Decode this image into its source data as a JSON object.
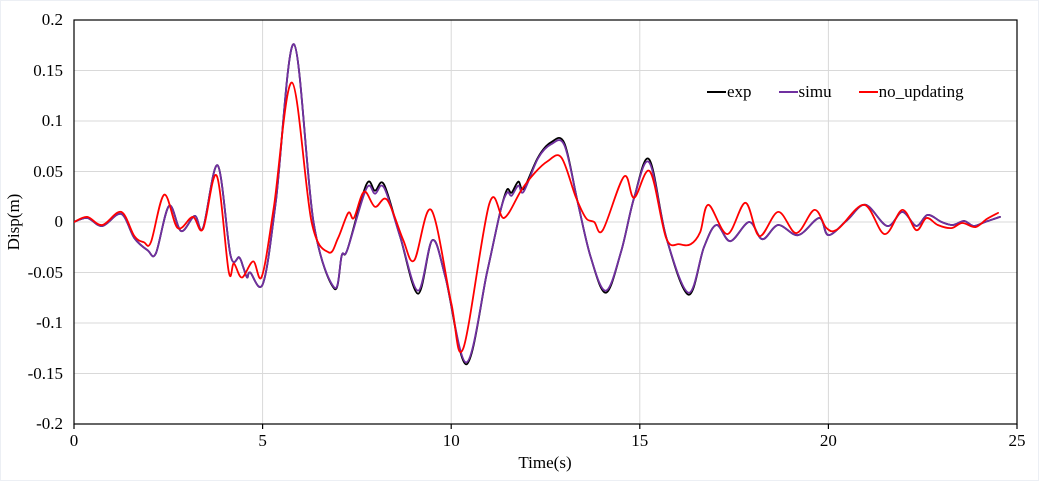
{
  "chart_data": {
    "type": "line",
    "title": "",
    "xlabel": "Time(s)",
    "ylabel": "Disp(m)",
    "xlim": [
      0,
      25
    ],
    "ylim": [
      -0.2,
      0.2
    ],
    "x_ticks": [
      0,
      5,
      10,
      15,
      20,
      25
    ],
    "x_tick_labels": [
      "0",
      "5",
      "10",
      "15",
      "20",
      "25"
    ],
    "y_ticks": [
      0.2,
      0.15,
      0.1,
      0.05,
      0,
      -0.05,
      -0.1,
      -0.15,
      -0.2
    ],
    "y_tick_labels": [
      "0.2",
      "0.15",
      "0.1",
      "0.05",
      "0",
      "-0.05",
      "-0.1",
      "-0.15",
      "-0.2"
    ],
    "grid": true,
    "grid_color": "#d9d9d9",
    "axis_color": "#000000",
    "legend_position": "inside-top-right",
    "series": [
      {
        "name": "exp",
        "color": "#000000",
        "points": [
          [
            0,
            0
          ],
          [
            0.35,
            0.004
          ],
          [
            0.75,
            -0.004
          ],
          [
            1.25,
            0.008
          ],
          [
            1.6,
            -0.016
          ],
          [
            1.95,
            -0.028
          ],
          [
            2.17,
            -0.031
          ],
          [
            2.52,
            0.016
          ],
          [
            2.84,
            -0.009
          ],
          [
            3.2,
            0.006
          ],
          [
            3.42,
            -0.006
          ],
          [
            3.81,
            0.056
          ],
          [
            4.15,
            -0.033
          ],
          [
            4.38,
            -0.035
          ],
          [
            4.48,
            -0.044
          ],
          [
            4.59,
            -0.055
          ],
          [
            4.67,
            -0.05
          ],
          [
            5.01,
            -0.061
          ],
          [
            5.35,
            0.02
          ],
          [
            5.83,
            0.176
          ],
          [
            6.35,
            0
          ],
          [
            6.9,
            -0.066
          ],
          [
            7.1,
            -0.033
          ],
          [
            7.25,
            -0.027
          ],
          [
            7.75,
            0.037
          ],
          [
            7.98,
            0.031
          ],
          [
            8.22,
            0.037
          ],
          [
            8.65,
            -0.015
          ],
          [
            9.12,
            -0.071
          ],
          [
            9.5,
            -0.018
          ],
          [
            9.85,
            -0.055
          ],
          [
            10.4,
            -0.141
          ],
          [
            10.95,
            -0.05
          ],
          [
            11.3,
            0.01
          ],
          [
            11.48,
            0.032
          ],
          [
            11.6,
            0.029
          ],
          [
            11.78,
            0.04
          ],
          [
            11.92,
            0.033
          ],
          [
            12.3,
            0.064
          ],
          [
            12.65,
            0.079
          ],
          [
            13,
            0.078
          ],
          [
            13.35,
            0.02
          ],
          [
            13.7,
            -0.035
          ],
          [
            14.1,
            -0.07
          ],
          [
            14.5,
            -0.03
          ],
          [
            14.85,
            0.024
          ],
          [
            15.25,
            0.062
          ],
          [
            15.7,
            -0.015
          ],
          [
            16.29,
            -0.072
          ],
          [
            16.7,
            -0.025
          ],
          [
            17.03,
            -0.003
          ],
          [
            17.4,
            -0.019
          ],
          [
            17.9,
            0
          ],
          [
            18.25,
            -0.017
          ],
          [
            18.67,
            -0.003
          ],
          [
            19.2,
            -0.013
          ],
          [
            19.76,
            0.004
          ],
          [
            20,
            -0.013
          ],
          [
            20.5,
            0.002
          ],
          [
            20.98,
            0.017
          ],
          [
            21.56,
            -0.004
          ],
          [
            21.96,
            0.01
          ],
          [
            22.33,
            -0.004
          ],
          [
            22.63,
            0.007
          ],
          [
            23,
            0
          ],
          [
            23.3,
            -0.003
          ],
          [
            23.6,
            0.001
          ],
          [
            23.85,
            -0.004
          ],
          [
            24.15,
            0
          ],
          [
            24.55,
            0.005
          ]
        ]
      },
      {
        "name": "simu",
        "color": "#7030A0",
        "points": [
          [
            0,
            0
          ],
          [
            0.35,
            0.004
          ],
          [
            0.75,
            -0.004
          ],
          [
            1.25,
            0.008
          ],
          [
            1.6,
            -0.016
          ],
          [
            1.95,
            -0.028
          ],
          [
            2.17,
            -0.031
          ],
          [
            2.52,
            0.016
          ],
          [
            2.84,
            -0.009
          ],
          [
            3.2,
            0.006
          ],
          [
            3.42,
            -0.006
          ],
          [
            3.81,
            0.056
          ],
          [
            4.15,
            -0.033
          ],
          [
            4.38,
            -0.035
          ],
          [
            4.48,
            -0.044
          ],
          [
            4.59,
            -0.055
          ],
          [
            4.67,
            -0.05
          ],
          [
            5.01,
            -0.061
          ],
          [
            5.35,
            0.02
          ],
          [
            5.83,
            0.176
          ],
          [
            6.35,
            0
          ],
          [
            6.9,
            -0.065
          ],
          [
            7.1,
            -0.033
          ],
          [
            7.25,
            -0.027
          ],
          [
            7.75,
            0.033
          ],
          [
            7.98,
            0.028
          ],
          [
            8.22,
            0.034
          ],
          [
            8.65,
            -0.015
          ],
          [
            9.12,
            -0.068
          ],
          [
            9.5,
            -0.018
          ],
          [
            9.85,
            -0.055
          ],
          [
            10.4,
            -0.139
          ],
          [
            10.95,
            -0.05
          ],
          [
            11.3,
            0.01
          ],
          [
            11.48,
            0.029
          ],
          [
            11.6,
            0.026
          ],
          [
            11.78,
            0.036
          ],
          [
            11.92,
            0.03
          ],
          [
            12.3,
            0.063
          ],
          [
            12.65,
            0.077
          ],
          [
            13,
            0.076
          ],
          [
            13.35,
            0.02
          ],
          [
            13.7,
            -0.035
          ],
          [
            14.1,
            -0.068
          ],
          [
            14.5,
            -0.03
          ],
          [
            14.85,
            0.024
          ],
          [
            15.25,
            0.059
          ],
          [
            15.7,
            -0.015
          ],
          [
            16.29,
            -0.07
          ],
          [
            16.7,
            -0.025
          ],
          [
            17.03,
            -0.003
          ],
          [
            17.4,
            -0.019
          ],
          [
            17.9,
            0
          ],
          [
            18.25,
            -0.017
          ],
          [
            18.67,
            -0.003
          ],
          [
            19.2,
            -0.013
          ],
          [
            19.76,
            0.004
          ],
          [
            20,
            -0.013
          ],
          [
            20.5,
            0.002
          ],
          [
            20.98,
            0.017
          ],
          [
            21.56,
            -0.004
          ],
          [
            21.96,
            0.01
          ],
          [
            22.33,
            -0.004
          ],
          [
            22.63,
            0.007
          ],
          [
            23,
            0
          ],
          [
            23.3,
            -0.003
          ],
          [
            23.6,
            0.001
          ],
          [
            23.85,
            -0.004
          ],
          [
            24.15,
            0
          ],
          [
            24.55,
            0.005
          ]
        ]
      },
      {
        "name": "no_updating",
        "color": "#FF0000",
        "points": [
          [
            0,
            0
          ],
          [
            0.35,
            0.005
          ],
          [
            0.75,
            -0.003
          ],
          [
            1.25,
            0.01
          ],
          [
            1.6,
            -0.014
          ],
          [
            1.85,
            -0.02
          ],
          [
            2.04,
            -0.02
          ],
          [
            2.39,
            0.027
          ],
          [
            2.75,
            -0.006
          ],
          [
            3.15,
            0.005
          ],
          [
            3.42,
            -0.007
          ],
          [
            3.78,
            0.046
          ],
          [
            4.1,
            -0.049
          ],
          [
            4.24,
            -0.041
          ],
          [
            4.45,
            -0.055
          ],
          [
            4.75,
            -0.039
          ],
          [
            4.98,
            -0.054
          ],
          [
            5.3,
            0.015
          ],
          [
            5.78,
            0.138
          ],
          [
            6.3,
            0
          ],
          [
            6.75,
            -0.03
          ],
          [
            7,
            -0.016
          ],
          [
            7.27,
            0.009
          ],
          [
            7.42,
            0.004
          ],
          [
            7.69,
            0.03
          ],
          [
            7.98,
            0.015
          ],
          [
            8.3,
            0.022
          ],
          [
            8.72,
            -0.017
          ],
          [
            9.02,
            -0.038
          ],
          [
            9.47,
            0.012
          ],
          [
            10,
            -0.08
          ],
          [
            10.32,
            -0.125
          ],
          [
            11.01,
            0.018
          ],
          [
            11.4,
            0.004
          ],
          [
            11.85,
            0.031
          ],
          [
            12.2,
            0.048
          ],
          [
            12.55,
            0.06
          ],
          [
            12.92,
            0.064
          ],
          [
            13.3,
            0.025
          ],
          [
            13.57,
            0.004
          ],
          [
            13.79,
            0
          ],
          [
            14.02,
            -0.008
          ],
          [
            14.58,
            0.045
          ],
          [
            14.85,
            0.024
          ],
          [
            15.27,
            0.05
          ],
          [
            15.7,
            -0.016
          ],
          [
            16.05,
            -0.022
          ],
          [
            16.35,
            -0.022
          ],
          [
            16.6,
            -0.01
          ],
          [
            16.82,
            0.017
          ],
          [
            17.32,
            -0.012
          ],
          [
            17.8,
            0.019
          ],
          [
            18.17,
            -0.014
          ],
          [
            18.67,
            0.01
          ],
          [
            19.15,
            -0.011
          ],
          [
            19.63,
            0.012
          ],
          [
            19.95,
            -0.006
          ],
          [
            20.25,
            -0.007
          ],
          [
            20.95,
            0.017
          ],
          [
            21.49,
            -0.012
          ],
          [
            21.96,
            0.012
          ],
          [
            22.33,
            -0.008
          ],
          [
            22.6,
            0.004
          ],
          [
            22.9,
            -0.003
          ],
          [
            23.26,
            -0.006
          ],
          [
            23.55,
            -0.001
          ],
          [
            23.9,
            -0.005
          ],
          [
            24.2,
            0.003
          ],
          [
            24.5,
            0.009
          ]
        ]
      }
    ]
  }
}
